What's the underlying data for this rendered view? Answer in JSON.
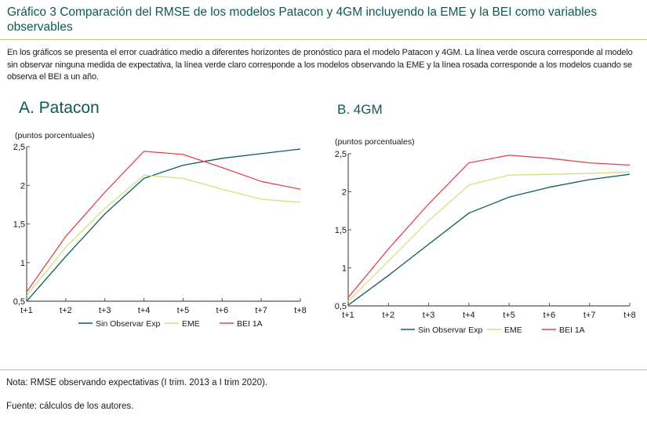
{
  "header": {
    "title": "Gráfico 3 Comparación del RMSE de los modelos Patacon y 4GM incluyendo la EME y la BEI como variables observables",
    "description": "En los gráficos se presenta el error cuadrático medio a diferentes horizontes de pronóstico para el modelo Patacon y 4GM. La línea verde oscura corresponde al modelo sin observar ninguna medida de expectativa, la línea verde claro corresponde a los modelos observando la EME y la línea rosada corresponde a los modelos cuando se observa el BEI a un año."
  },
  "colors": {
    "title": "#0b5a55",
    "divider": "#b9c98a",
    "sin_observar": "#0e5b60",
    "eme": "#d6df7e",
    "bei": "#e4434f",
    "axis": "#555555"
  },
  "footer": {
    "note": "Nota: RMSE observando expectativas (I trim. 2013 a I trim 2020).",
    "source": "Fuente: cálculos de los autores."
  },
  "chart_data": [
    {
      "type": "line",
      "panel_title": "A.  Patacon",
      "ylabel": "(puntos porcentuales)",
      "xlabel": "",
      "categories": [
        "t+1",
        "t+2",
        "t+3",
        "t+4",
        "t+5",
        "t+6",
        "t+7",
        "t+8"
      ],
      "ylim": [
        0.5,
        2.5
      ],
      "yticks": [
        0.5,
        1,
        1.5,
        2,
        2.5
      ],
      "ytick_labels": [
        "0,5",
        "1",
        "1,5",
        "2",
        "2,5"
      ],
      "grid": false,
      "legend_position": "bottom",
      "series": [
        {
          "name": "Sin Observar Exp",
          "color_key": "sin_observar",
          "values": [
            0.5,
            1.08,
            1.63,
            2.09,
            2.26,
            2.35,
            2.41,
            2.47
          ]
        },
        {
          "name": "EME",
          "color_key": "eme",
          "values": [
            0.57,
            1.2,
            1.7,
            2.13,
            2.09,
            1.95,
            1.82,
            1.78
          ]
        },
        {
          "name": "BEI 1A",
          "color_key": "bei",
          "values": [
            0.62,
            1.34,
            1.91,
            2.44,
            2.4,
            2.23,
            2.05,
            1.95
          ]
        }
      ]
    },
    {
      "type": "line",
      "panel_title": "B. 4GM",
      "ylabel": "(puntos porcentuales)",
      "xlabel": "",
      "categories": [
        "t+1",
        "t+2",
        "t+3",
        "t+4",
        "t+5",
        "t+6",
        "t+7",
        "t+8"
      ],
      "ylim": [
        0.5,
        2.5
      ],
      "yticks": [
        0.5,
        1,
        1.5,
        2,
        2.5
      ],
      "ytick_labels": [
        "0,5",
        "1",
        "1,5",
        "2",
        "2,5"
      ],
      "grid": false,
      "legend_position": "bottom",
      "series": [
        {
          "name": "Sin Observar Exp",
          "color_key": "sin_observar",
          "values": [
            0.51,
            0.9,
            1.31,
            1.72,
            1.93,
            2.06,
            2.16,
            2.23
          ]
        },
        {
          "name": "EME",
          "color_key": "eme",
          "values": [
            0.56,
            1.09,
            1.62,
            2.09,
            2.22,
            2.23,
            2.24,
            2.26
          ]
        },
        {
          "name": "BEI 1A",
          "color_key": "bei",
          "values": [
            0.61,
            1.25,
            1.84,
            2.38,
            2.48,
            2.44,
            2.38,
            2.35
          ]
        }
      ]
    }
  ]
}
